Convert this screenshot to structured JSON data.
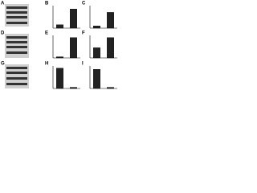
{
  "blots": [
    {
      "label": "A"
    },
    {
      "label": "D"
    },
    {
      "label": "G"
    }
  ],
  "chart_data": [
    {
      "type": "bar",
      "label": "B",
      "categories": [
        null,
        null
      ],
      "values": [
        0.15,
        0.85
      ],
      "ylim": [
        0,
        1
      ],
      "color": "#222222"
    },
    {
      "type": "bar",
      "label": "C",
      "categories": [
        null,
        null
      ],
      "values": [
        0.1,
        0.7
      ],
      "ylim": [
        0,
        1
      ],
      "color": "#222222"
    },
    {
      "type": "bar",
      "label": "E",
      "categories": [
        null,
        null
      ],
      "values": [
        0.05,
        0.9
      ],
      "ylim": [
        0,
        1
      ],
      "color": "#222222"
    },
    {
      "type": "bar",
      "label": "F",
      "categories": [
        null,
        null
      ],
      "values": [
        0.45,
        0.9
      ],
      "ylim": [
        0,
        1
      ],
      "color": "#222222"
    },
    {
      "type": "bar",
      "label": "H",
      "categories": [
        null,
        null
      ],
      "values": [
        0.9,
        0.05
      ],
      "ylim": [
        0,
        1
      ],
      "color": "#222222"
    },
    {
      "type": "bar",
      "label": "I",
      "categories": [
        null,
        null
      ],
      "values": [
        0.85,
        0.05
      ],
      "ylim": [
        0,
        1
      ],
      "color": "#222222"
    }
  ]
}
